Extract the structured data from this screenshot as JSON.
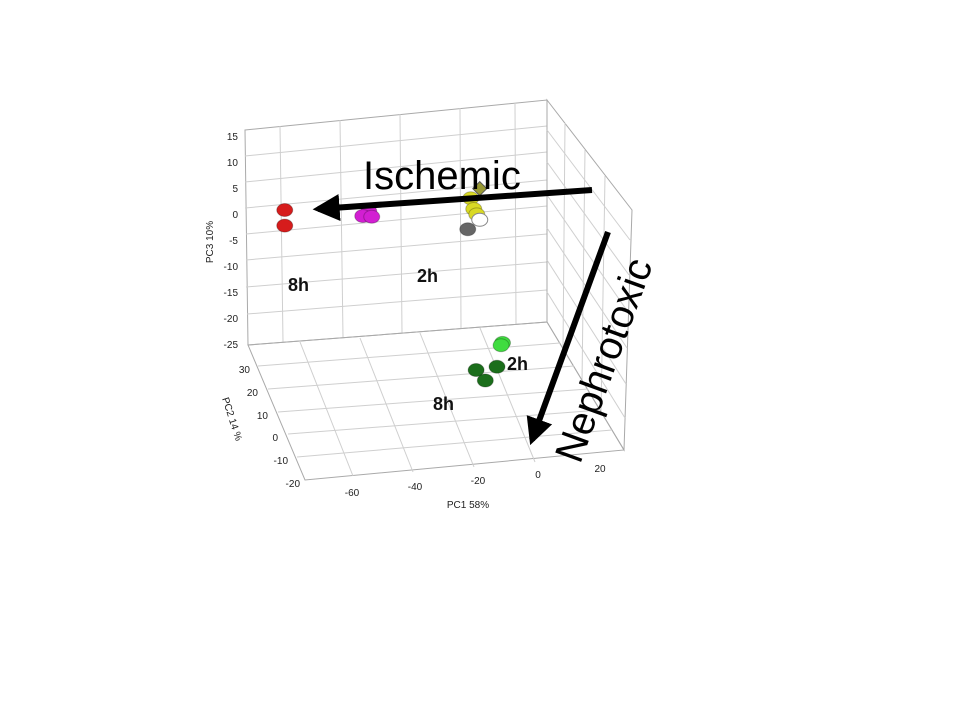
{
  "chart_data": {
    "type": "scatter",
    "title": "",
    "axes": {
      "pc1": {
        "label": "PC1 58%",
        "ticks": [
          "-60",
          "-40",
          "-20",
          "0",
          "20"
        ]
      },
      "pc2": {
        "label": "PC2 14 %",
        "ticks": [
          "30",
          "20",
          "10",
          "0",
          "-10",
          "-20"
        ]
      },
      "pc3": {
        "label": "PC3 10%",
        "ticks": [
          "15",
          "10",
          "5",
          "0",
          "-5",
          "-10",
          "-15",
          "-20",
          "-25"
        ],
        "range": [
          -25,
          15
        ]
      }
    },
    "grid": true,
    "series": [
      {
        "color": "#d61c1c",
        "marker": "circle",
        "points": [
          [
            -70,
            25,
            -5
          ],
          [
            -70,
            25,
            -8
          ]
        ]
      },
      {
        "color": "#d21fd2",
        "marker": "circle",
        "points": [
          [
            -42,
            25,
            -4
          ],
          [
            -44,
            25,
            -5
          ],
          [
            -41,
            25,
            -5
          ]
        ]
      },
      {
        "color": "#d9d925",
        "marker": "circle",
        "points": [
          [
            -8,
            25,
            0
          ],
          [
            -7,
            25,
            -2
          ],
          [
            -6,
            25,
            -3
          ]
        ]
      },
      {
        "color": "#999933",
        "marker": "diamond",
        "points": [
          [
            -5,
            25,
            2
          ]
        ]
      },
      {
        "color": "#ffffff",
        "marker": "circle-open",
        "points": [
          [
            -5,
            25,
            -4
          ]
        ]
      },
      {
        "color": "#666666",
        "marker": "circle",
        "points": [
          [
            -9,
            25,
            -6
          ]
        ]
      },
      {
        "color": "#3fdc3f",
        "marker": "circle",
        "points": [
          [
            0,
            20,
            -25
          ],
          [
            -1,
            19,
            -25
          ]
        ]
      },
      {
        "color": "#1b6e1b",
        "marker": "circle",
        "points": [
          [
            -7,
            10,
            -25
          ],
          [
            -15,
            8,
            -25
          ],
          [
            -14,
            4,
            -25
          ]
        ]
      }
    ],
    "annotations": [
      {
        "text": "Ischemic",
        "kind": "arrow"
      },
      {
        "text": "Nephrotoxic",
        "kind": "arrow"
      },
      {
        "text": "8h"
      },
      {
        "text": "2h"
      },
      {
        "text": "2h"
      },
      {
        "text": "8h"
      }
    ]
  }
}
